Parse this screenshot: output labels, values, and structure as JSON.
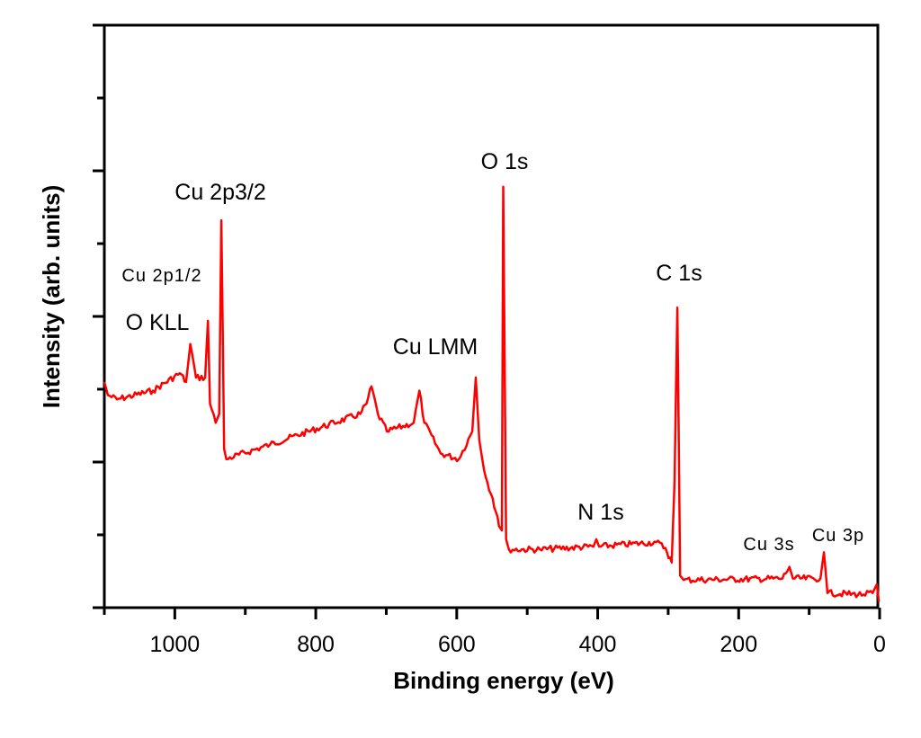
{
  "chart_data": {
    "type": "line",
    "title": "",
    "xlabel": "Binding energy (eV)",
    "ylabel": "Intensity (arb. units)",
    "xlim": [
      1100,
      0
    ],
    "x_reversed": true,
    "ylim": [
      0,
      4
    ],
    "y_tick_labels_shown": false,
    "grid": false,
    "legend": "none",
    "x_ticks": [
      1000,
      800,
      600,
      400,
      200,
      0
    ],
    "x_tick_labels": [
      "1000",
      "800",
      "600",
      "400",
      "200",
      "0"
    ],
    "series": [
      {
        "color": "#ff0000",
        "x": [
          1100,
          1095,
          1082,
          1031,
          993,
          984,
          978,
          970,
          957,
          953,
          950,
          942,
          937,
          934,
          930,
          927,
          865,
          737,
          728,
          721,
          712,
          699,
          661,
          653,
          646,
          623,
          597,
          578,
          573,
          568,
          559,
          549,
          540,
          536,
          534,
          530,
          526,
          482,
          406,
          402,
          398,
          317,
          304,
          295,
          291,
          287,
          283,
          278,
          138,
          128,
          123,
          84,
          79,
          74,
          23,
          10,
          4,
          1
        ],
        "y": [
          1.55,
          1.46,
          1.43,
          1.49,
          1.61,
          1.55,
          1.81,
          1.58,
          1.58,
          1.97,
          1.4,
          1.27,
          1.33,
          2.66,
          1.09,
          1.02,
          1.12,
          1.33,
          1.4,
          1.52,
          1.33,
          1.21,
          1.27,
          1.49,
          1.27,
          1.06,
          1.02,
          1.21,
          1.58,
          1.15,
          0.9,
          0.75,
          0.56,
          0.53,
          2.89,
          0.47,
          0.4,
          0.4,
          0.42,
          0.47,
          0.42,
          0.45,
          0.41,
          0.31,
          0.87,
          2.06,
          0.22,
          0.19,
          0.2,
          0.28,
          0.2,
          0.2,
          0.38,
          0.1,
          0.09,
          0.1,
          0.16,
          0.04
        ]
      }
    ],
    "annotations": [
      {
        "text": "Cu 2p3/2",
        "x": 934
      },
      {
        "text": "O 1s",
        "x": 533
      },
      {
        "text": "C 1s",
        "x": 285
      },
      {
        "text": "Cu 2p1/2",
        "x": 953
      },
      {
        "text": "O KLL",
        "x": 978
      },
      {
        "text": "Cu LMM",
        "x": 573
      },
      {
        "text": "N 1s",
        "x": 400
      },
      {
        "text": "Cu 3s",
        "x": 123
      },
      {
        "text": "Cu 3p",
        "x": 77
      }
    ]
  }
}
